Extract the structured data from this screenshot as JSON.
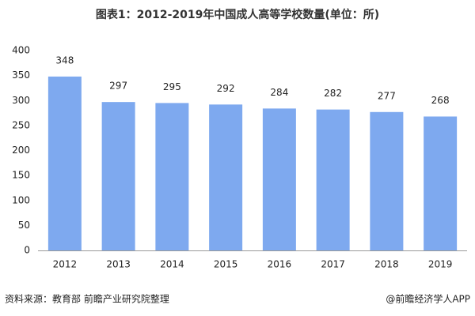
{
  "chart_data": {
    "type": "bar",
    "title": "图表1：2012-2019年中国成人高等学校数量(单位：所)",
    "categories": [
      "2012",
      "2013",
      "2014",
      "2015",
      "2016",
      "2017",
      "2018",
      "2019"
    ],
    "values": [
      348,
      297,
      295,
      292,
      284,
      282,
      277,
      268
    ],
    "color": "#7ea9ef",
    "ylim": [
      0,
      400
    ],
    "yticks": [
      0,
      50,
      100,
      150,
      200,
      250,
      300,
      350,
      400
    ],
    "grid": false,
    "source": "资料来源：教育部 前瞻产业研究院整理",
    "credit": "@前瞻经济学人APP"
  }
}
